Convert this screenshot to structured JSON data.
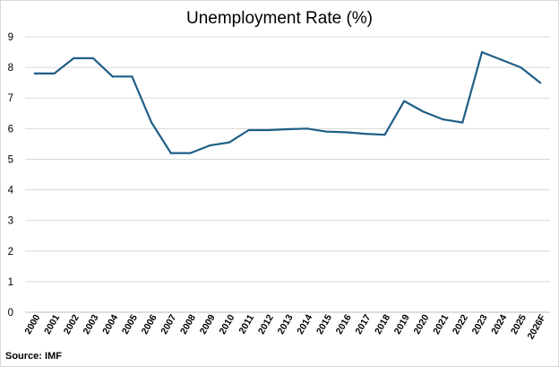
{
  "chart_data": {
    "type": "line",
    "title": "Unemployment Rate (%)",
    "xlabel": "",
    "ylabel": "",
    "categories": [
      "2000",
      "2001",
      "2002",
      "2003",
      "2004",
      "2005",
      "2006",
      "2007",
      "2008",
      "2009",
      "2010",
      "2011",
      "2012",
      "2013",
      "2014",
      "2015",
      "2016",
      "2017",
      "2018",
      "2019",
      "2020",
      "2021",
      "2022",
      "2023",
      "2024",
      "2025",
      "2026F"
    ],
    "series": [
      {
        "values": [
          7.8,
          7.8,
          8.3,
          8.3,
          7.7,
          7.7,
          6.2,
          5.2,
          5.2,
          5.45,
          5.55,
          5.95,
          5.95,
          5.98,
          6.0,
          5.9,
          5.88,
          5.83,
          5.8,
          6.9,
          6.55,
          6.3,
          6.2,
          8.5,
          8.25,
          8.0,
          7.5
        ],
        "color": "#1f5f87"
      }
    ],
    "ylim": [
      0,
      9
    ],
    "yticks": [
      0,
      1,
      2,
      3,
      4,
      5,
      6,
      7,
      8,
      9
    ],
    "grid": true,
    "legend": "none"
  },
  "footer": {
    "source": "Source: IMF"
  }
}
